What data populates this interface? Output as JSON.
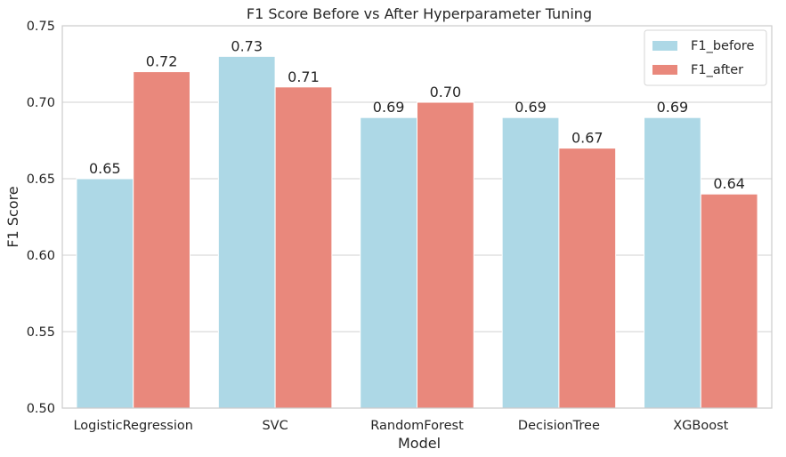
{
  "chart_data": {
    "type": "bar",
    "title": "F1 Score Before vs After Hyperparameter Tuning",
    "xlabel": "Model",
    "ylabel": "F1 Score",
    "ylim": [
      0.5,
      0.75
    ],
    "yticks": [
      "0.50",
      "0.55",
      "0.60",
      "0.65",
      "0.70",
      "0.75"
    ],
    "categories": [
      "LogisticRegression",
      "SVC",
      "RandomForest",
      "DecisionTree",
      "XGBoost"
    ],
    "series": [
      {
        "name": "F1_before",
        "color": "#add8e6",
        "values": [
          0.65,
          0.73,
          0.69,
          0.69,
          0.69
        ],
        "labels": [
          "0.65",
          "0.73",
          "0.69",
          "0.69",
          "0.69"
        ]
      },
      {
        "name": "F1_after",
        "color": "#e9887c",
        "values": [
          0.72,
          0.71,
          0.7,
          0.67,
          0.64
        ],
        "labels": [
          "0.72",
          "0.71",
          "0.70",
          "0.67",
          "0.64"
        ]
      }
    ],
    "grid": true,
    "legend_position": "top-right"
  }
}
